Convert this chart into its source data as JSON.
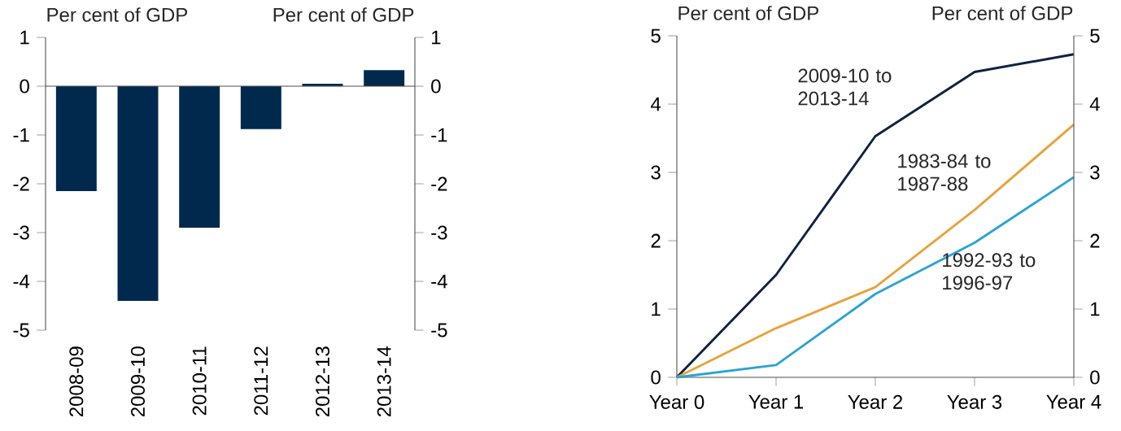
{
  "chart_data": [
    {
      "type": "bar",
      "ylabel": "Per cent of GDP",
      "y2label": "Per cent of GDP",
      "categories": [
        "2008-09",
        "2009-10",
        "2010-11",
        "2011-12",
        "2012-13",
        "2013-14"
      ],
      "values": [
        -2.15,
        -4.4,
        -2.9,
        -0.88,
        0.05,
        0.33
      ],
      "color": "#00294d",
      "ylim": [
        -5,
        1
      ],
      "yticks": [
        -5,
        -4,
        -3,
        -2,
        -1,
        0,
        1
      ],
      "y2lim": [
        -5,
        1
      ],
      "y2ticks": [
        -5,
        -4,
        -3,
        -2,
        -1,
        0,
        1
      ]
    },
    {
      "type": "line",
      "ylabel": "Per cent of GDP",
      "y2label": "Per cent of GDP",
      "categories": [
        "Year 0",
        "Year 1",
        "Year 2",
        "Year 3",
        "Year 4"
      ],
      "series": [
        {
          "name": "2009-10 to 2013-14",
          "color": "#0c2340",
          "values": [
            0,
            1.5,
            3.53,
            4.47,
            4.73
          ]
        },
        {
          "name": "1983-84 to 1987-88",
          "color": "#e8a23b",
          "values": [
            0,
            0.72,
            1.32,
            2.45,
            3.7
          ]
        },
        {
          "name": "1992-93 to 1996-97",
          "color": "#2ba3d6",
          "values": [
            0,
            0.18,
            1.22,
            1.97,
            2.93
          ]
        }
      ],
      "ylim": [
        0,
        5
      ],
      "yticks": [
        0,
        1,
        2,
        3,
        4,
        5
      ],
      "y2lim": [
        0,
        5
      ],
      "y2ticks": [
        0,
        1,
        2,
        3,
        4,
        5
      ]
    }
  ]
}
